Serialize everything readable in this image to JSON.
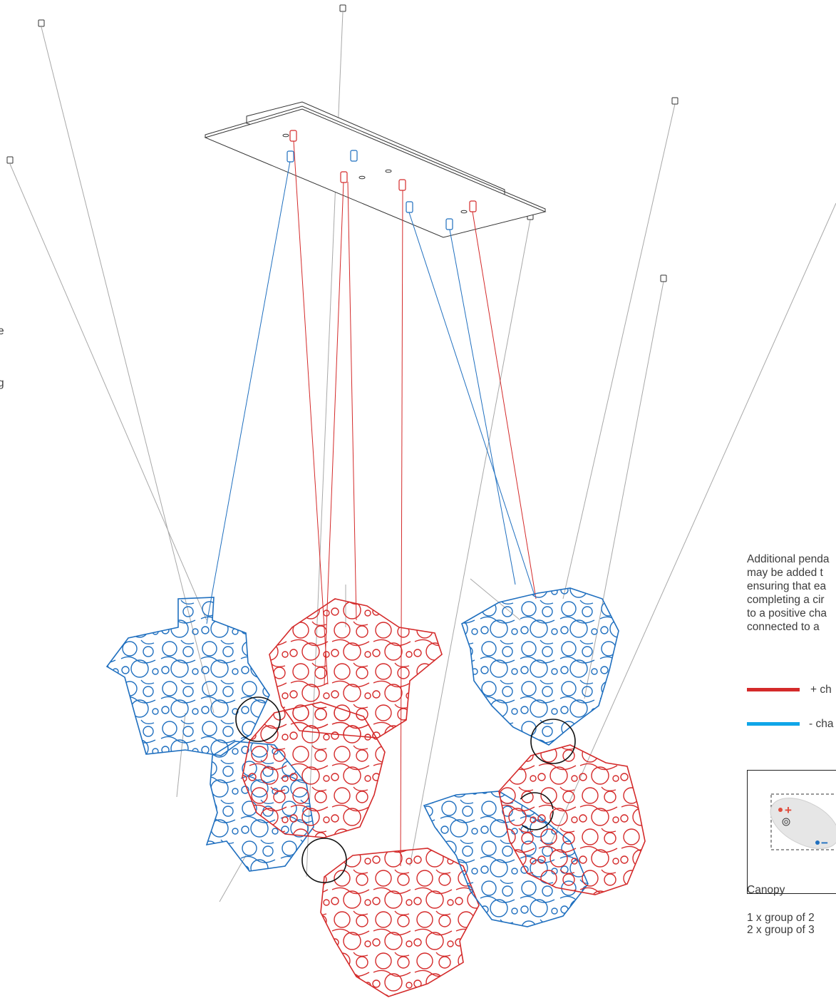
{
  "left_fragments": [
    "e",
    "g"
  ],
  "note": {
    "lines": [
      "Additional penda",
      "may be added t",
      "ensuring that ea",
      "completing a cir",
      "to a positive cha",
      "connected to a"
    ]
  },
  "legend": [
    {
      "label": "+ ch",
      "color": "#d42a2a"
    },
    {
      "label": "- cha",
      "color": "#10a6e8"
    }
  ],
  "canopy": {
    "plus_symbol": "+",
    "minus_symbol": "−",
    "caption": "Canopy",
    "groups": [
      "1 x group of 2",
      "2 x group of 3"
    ]
  },
  "colors": {
    "positive": "#d42a2a",
    "negative": "#1f6fbf",
    "cable": "#a8a8a8",
    "outline": "#222222"
  }
}
